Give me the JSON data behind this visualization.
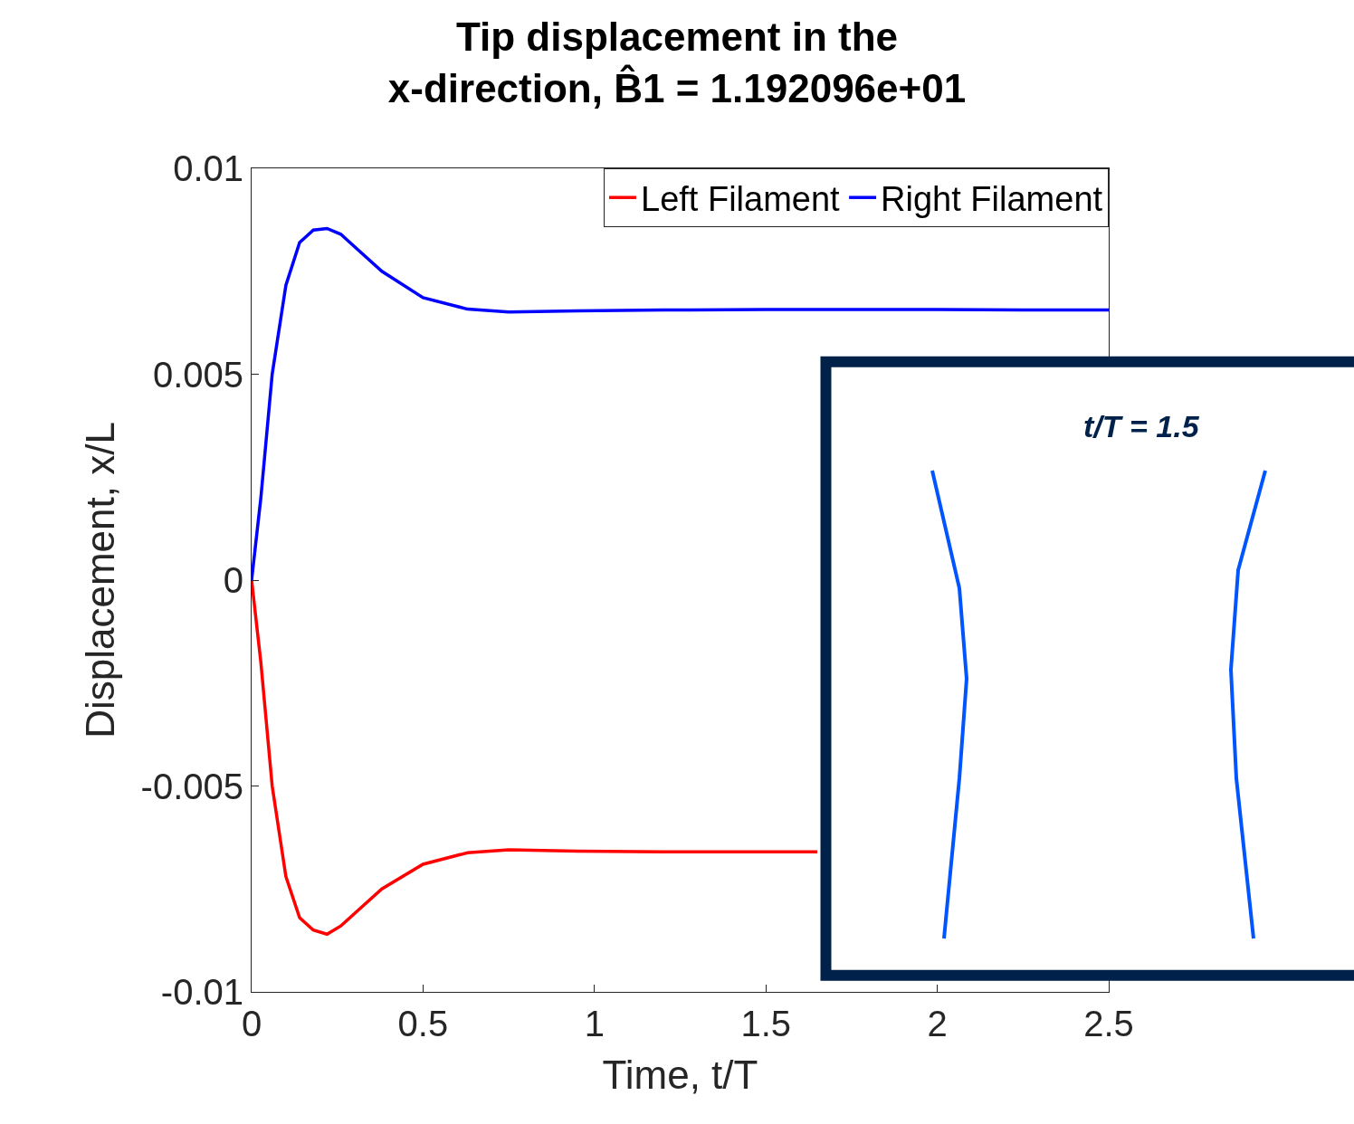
{
  "chart_data": {
    "type": "line",
    "title": "Tip displacement in the\nx-direction, B̂1 = 1.192096e+01",
    "xlabel": "Time, t/T",
    "ylabel": "Displacement, x/L",
    "x": [
      0,
      0.027,
      0.06,
      0.1,
      0.14,
      0.18,
      0.22,
      0.26,
      0.3,
      0.38,
      0.5,
      0.63,
      0.75,
      0.95,
      1.2,
      1.5,
      1.65,
      1.8,
      2.0,
      2.25,
      2.5
    ],
    "series": [
      {
        "name": "Left Filament",
        "color": "#ff0000",
        "values": [
          0,
          -0.002,
          -0.005,
          -0.0072,
          -0.0082,
          -0.0085,
          -0.0086,
          -0.0084,
          -0.0081,
          -0.0075,
          -0.0069,
          -0.00662,
          -0.00655,
          -0.00658,
          -0.0066,
          -0.0066,
          -0.0066,
          null,
          null,
          null,
          null
        ]
      },
      {
        "name": "Right Filament",
        "color": "#0000ff",
        "values": [
          0,
          0.002,
          0.005,
          0.00716,
          0.0082,
          0.0085,
          0.00854,
          0.0084,
          0.0081,
          0.0075,
          0.00686,
          0.00658,
          0.00651,
          0.00654,
          0.00656,
          0.00657,
          0.00657,
          0.00657,
          0.00657,
          0.00656,
          0.00656
        ]
      }
    ],
    "xlim": [
      0,
      2.5
    ],
    "xticks": [
      0,
      0.5,
      1,
      1.5,
      2,
      2.5
    ],
    "ylim": [
      -0.01,
      0.01
    ],
    "yticks": [
      -0.01,
      -0.005,
      0,
      0.005,
      0.01
    ],
    "legend": "top right",
    "marker": "none",
    "line_style": "solid",
    "annotations": [
      "t/T = 1.5"
    ]
  }
}
